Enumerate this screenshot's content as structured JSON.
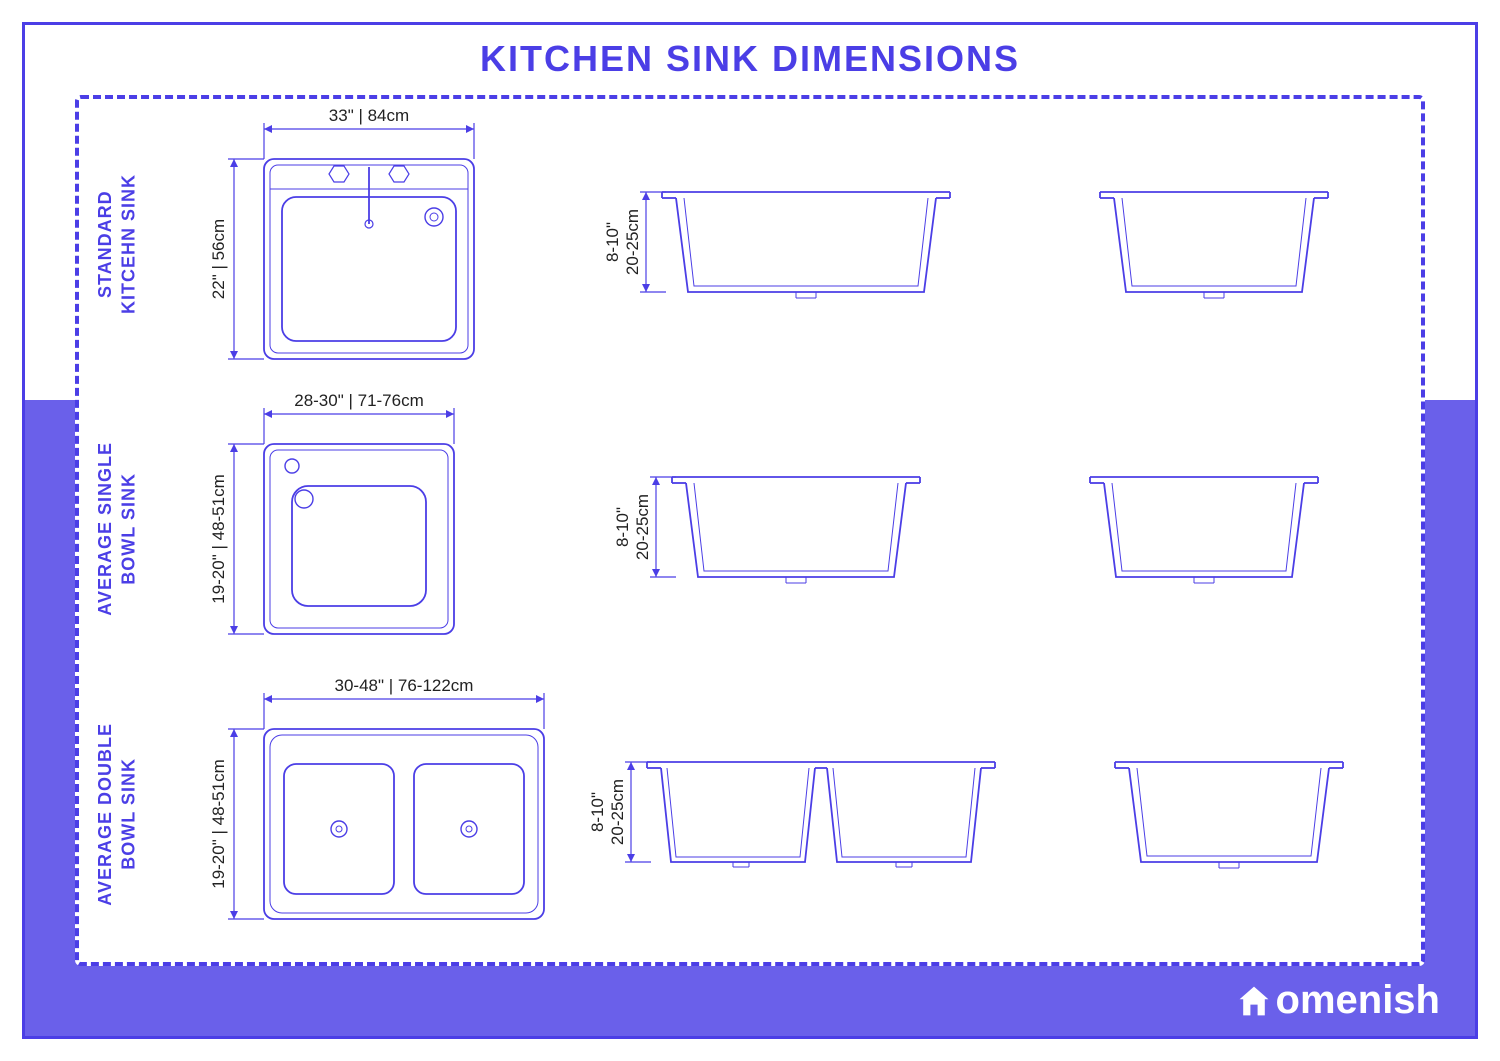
{
  "title": "KITCHEN SINK DIMENSIONS",
  "brand": "omenish",
  "colors": {
    "primary": "#4b3ee6",
    "backdrop": "#6a60ea",
    "line": "#4b3ee6",
    "text_dim": "#222222"
  },
  "stroke_width": 1.8,
  "stroke_width_dim": 1.2,
  "rows": [
    {
      "label_line1": "STANDARD",
      "label_line2": "KITCEHN SINK",
      "top_width_label": "33\" | 84cm",
      "top_height_label": "22\" | 56cm",
      "depth_in": "8-10\"",
      "depth_cm": "20-25cm",
      "top_sink_w": 210,
      "top_sink_h": 200,
      "side1_w": 260,
      "side2_w": 200,
      "side_h": 100,
      "type": "standard"
    },
    {
      "label_line1": "AVERAGE SINGLE",
      "label_line2": "BOWL SINK",
      "top_width_label": "28-30\" | 71-76cm",
      "top_height_label": "19-20\" | 48-51cm",
      "depth_in": "8-10\"",
      "depth_cm": "20-25cm",
      "top_sink_w": 190,
      "top_sink_h": 190,
      "side1_w": 220,
      "side2_w": 200,
      "side_h": 100,
      "type": "single"
    },
    {
      "label_line1": "AVERAGE DOUBLE",
      "label_line2": "BOWL SINK",
      "top_width_label": "30-48\" | 76-122cm",
      "top_height_label": "19-20\" | 48-51cm",
      "depth_in": "8-10\"",
      "depth_cm": "20-25cm",
      "top_sink_w": 280,
      "top_sink_h": 190,
      "side1_w": 320,
      "side2_w": 200,
      "side_h": 100,
      "type": "double"
    }
  ]
}
